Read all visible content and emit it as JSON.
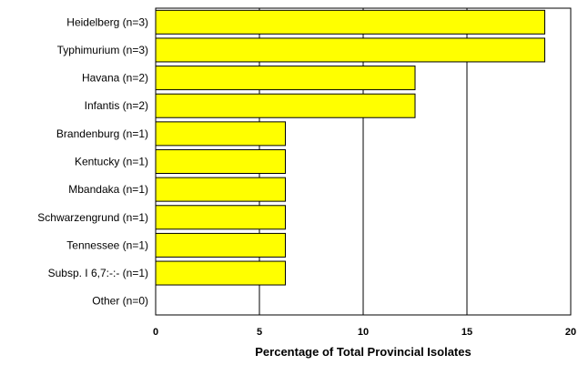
{
  "chart_data": {
    "type": "bar",
    "orientation": "horizontal",
    "categories": [
      "Heidelberg (n=3)",
      "Typhimurium (n=3)",
      "Havana (n=2)",
      "Infantis (n=2)",
      "Brandenburg (n=1)",
      "Kentucky (n=1)",
      "Mbandaka (n=1)",
      "Schwarzengrund (n=1)",
      "Tennessee (n=1)",
      "Subsp. I 6,7:-:- (n=1)",
      "Other (n=0)"
    ],
    "values": [
      18.75,
      18.75,
      12.5,
      12.5,
      6.25,
      6.25,
      6.25,
      6.25,
      6.25,
      6.25,
      0
    ],
    "xlabel": "Percentage of Total Provincial Isolates",
    "ylabel": "",
    "xlim": [
      0,
      20
    ],
    "xticks": [
      "0",
      "5",
      "10",
      "15",
      "20"
    ],
    "grid": "vertical",
    "legend": "none",
    "bar_color": "#ffff00",
    "bar_edge_color": "#000000",
    "grid_color": "#000000"
  }
}
